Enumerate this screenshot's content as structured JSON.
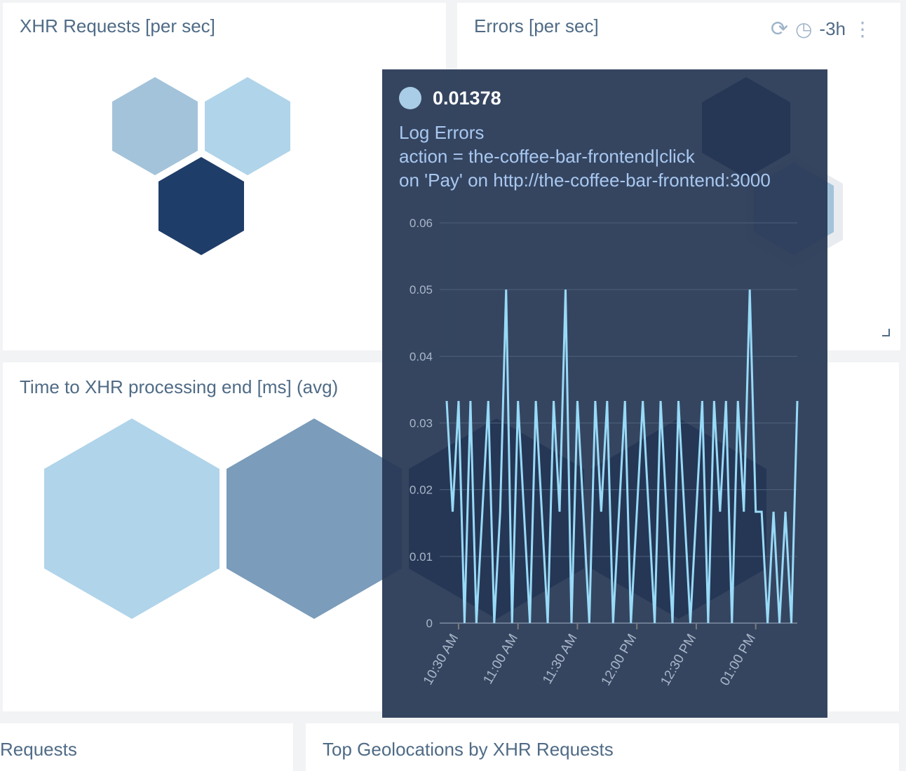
{
  "panels": {
    "xhr_requests": {
      "title": "XHR Requests [per sec]"
    },
    "errors": {
      "title": "Errors [per sec]",
      "time_range": "-3h",
      "icons": [
        "refresh-icon",
        "clock-icon",
        "more-vertical-icon"
      ]
    },
    "time_to_xhr": {
      "title": "Time to XHR processing end [ms] (avg)"
    },
    "bottom_left": {
      "title": "Requests"
    },
    "bottom_mid": {
      "title": "Top Geolocations by XHR Requests"
    }
  },
  "colors": {
    "hex_light": "#b0d4ea",
    "hex_mid": "#a3c3da",
    "hex_dark": "#1f3d69",
    "hex_steel": "#7b9cba",
    "tooltip_bg": "#263754",
    "series": "#98daf7"
  },
  "tooltip": {
    "value": "0.01378",
    "series_name": "Log Errors",
    "line1": "action = the-coffee-bar-frontend|click",
    "line2": "on 'Pay' on http://the-coffee-bar-frontend:3000"
  },
  "chart_data": {
    "type": "line",
    "title": "",
    "xlabel": "",
    "ylabel": "",
    "ylim": [
      0,
      0.06
    ],
    "yticks": [
      "0",
      "0.01",
      "0.02",
      "0.03",
      "0.04",
      "0.05",
      "0.06"
    ],
    "xticks": [
      "10:30 AM",
      "11:00 AM",
      "11:30 AM",
      "12:00 PM",
      "12:30 PM",
      "01:00 PM"
    ],
    "grid": true,
    "x": [
      "10:24",
      "10:27",
      "10:30",
      "10:33",
      "10:36",
      "10:39",
      "10:42",
      "10:45",
      "10:48",
      "10:51",
      "10:54",
      "10:57",
      "11:00",
      "11:03",
      "11:06",
      "11:09",
      "11:12",
      "11:15",
      "11:18",
      "11:21",
      "11:24",
      "11:27",
      "11:30",
      "11:33",
      "11:36",
      "11:39",
      "11:42",
      "11:45",
      "11:48",
      "11:51",
      "11:54",
      "11:57",
      "12:00",
      "12:03",
      "12:06",
      "12:09",
      "12:12",
      "12:15",
      "12:18",
      "12:21",
      "12:24",
      "12:27",
      "12:30",
      "12:33",
      "12:36",
      "12:39",
      "12:42",
      "12:45",
      "12:48",
      "12:51",
      "12:54",
      "12:57",
      "13:00",
      "13:03",
      "13:06",
      "13:09",
      "13:12",
      "13:15",
      "13:18",
      "13:21"
    ],
    "series": [
      {
        "values": [
          0.0333,
          0.0167,
          0.0333,
          0,
          0.0333,
          0,
          0.0167,
          0.0333,
          0,
          0.0167,
          0.05,
          0,
          0.0333,
          0.0167,
          0,
          0.0333,
          0.0167,
          0,
          0.0333,
          0.0167,
          0.05,
          0,
          0.0333,
          0.0167,
          0,
          0.0333,
          0.0167,
          0.0333,
          0,
          0.0167,
          0.0333,
          0,
          0.0167,
          0.0333,
          0.0167,
          0,
          0.0333,
          0.0167,
          0,
          0.0333,
          0.0167,
          0,
          0.0167,
          0.0333,
          0,
          0.0333,
          0.0167,
          0.0333,
          0,
          0.0333,
          0.0167,
          0.05,
          0.0167,
          0.0167,
          0,
          0.0167,
          0,
          0.0167,
          0,
          0.0333
        ]
      }
    ]
  }
}
